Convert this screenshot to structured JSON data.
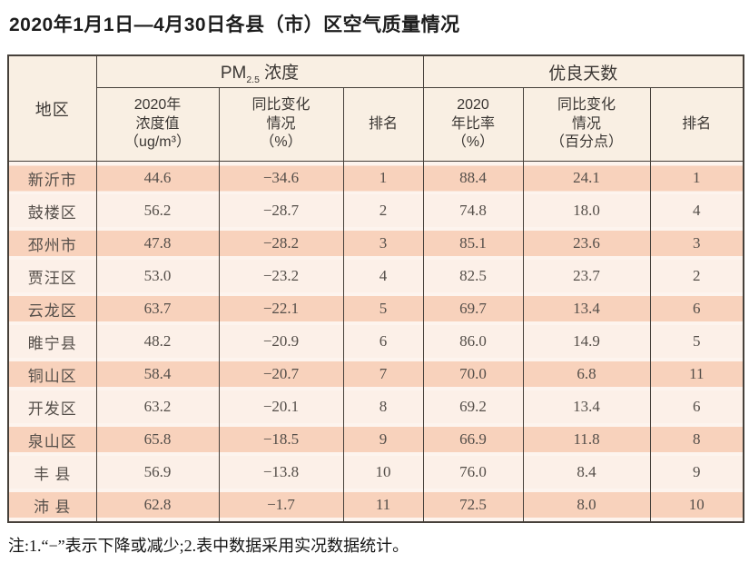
{
  "title": "2020年1月1日—4月30日各县（市）区空气质量情况",
  "table": {
    "region_header": "地区",
    "pm25_group": {
      "prefix": "PM",
      "sub": "2.5",
      "suffix": " 浓度"
    },
    "good_days_group": "优良天数",
    "subheaders": [
      "2020年\n浓度值\n（ug/m³）",
      "同比变化\n情况\n（%）",
      "排名",
      "2020\n年比率\n（%）",
      "同比变化\n情况\n（百分点）",
      "排名"
    ]
  },
  "chart_data": {
    "type": "table",
    "title": "2020年1月1日—4月30日各县（市）区空气质量情况",
    "column_groups": [
      "PM2.5 浓度",
      "优良天数"
    ],
    "columns": [
      "地区",
      "PM2.5 2020年浓度值（ug/m³）",
      "PM2.5 同比变化情况（%）",
      "PM2.5 排名",
      "优良天数 2020年比率（%）",
      "优良天数 同比变化情况（百分点）",
      "优良天数 排名"
    ],
    "rows": [
      {
        "region": "新沂市",
        "values": [
          "44.6",
          "−34.6",
          "1",
          "88.4",
          "24.1",
          "1"
        ]
      },
      {
        "region": "鼓楼区",
        "values": [
          "56.2",
          "−28.7",
          "2",
          "74.8",
          "18.0",
          "4"
        ]
      },
      {
        "region": "邳州市",
        "values": [
          "47.8",
          "−28.2",
          "3",
          "85.1",
          "23.6",
          "3"
        ]
      },
      {
        "region": "贾汪区",
        "values": [
          "53.0",
          "−23.2",
          "4",
          "82.5",
          "23.7",
          "2"
        ]
      },
      {
        "region": "云龙区",
        "values": [
          "63.7",
          "−22.1",
          "5",
          "69.7",
          "13.4",
          "6"
        ]
      },
      {
        "region": "睢宁县",
        "values": [
          "48.2",
          "−20.9",
          "6",
          "86.0",
          "14.9",
          "5"
        ]
      },
      {
        "region": "铜山区",
        "values": [
          "58.4",
          "−20.7",
          "7",
          "70.0",
          "6.8",
          "11"
        ]
      },
      {
        "region": "开发区",
        "values": [
          "63.2",
          "−20.1",
          "8",
          "69.2",
          "13.4",
          "6"
        ]
      },
      {
        "region": "泉山区",
        "values": [
          "65.8",
          "−18.5",
          "9",
          "66.9",
          "11.8",
          "8"
        ]
      },
      {
        "region": "丰 县",
        "values": [
          "56.9",
          "−13.8",
          "10",
          "76.0",
          "8.4",
          "9"
        ]
      },
      {
        "region": "沛 县",
        "values": [
          "62.8",
          "−1.7",
          "11",
          "72.5",
          "8.0",
          "10"
        ]
      }
    ]
  },
  "footnote": "注:1.“−”表示下降或减少;2.表中数据采用实况数据统计。",
  "colors": {
    "row_band_dark": "#f8d2bc",
    "row_light": "#fcf0e8",
    "header_bg": "#f9efe3",
    "table_border": "#46403a",
    "region_text": "#634a40",
    "value_text": "#544e49"
  }
}
